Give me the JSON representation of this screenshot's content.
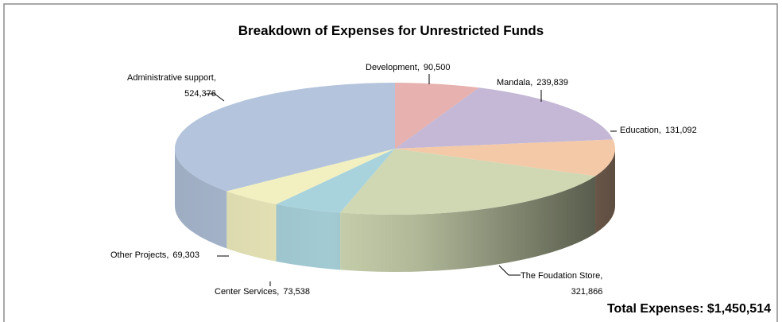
{
  "chart_data": {
    "type": "pie3d",
    "title": "Breakdown of Expenses for Unrestricted Funds",
    "annotation": "Total Expenses: $1,450,514",
    "categories": [
      "Development",
      "Mandala",
      "Education",
      "The Foudation Store",
      "Center Services",
      "Other Projects",
      "Administrative support"
    ],
    "values": [
      90500,
      239839,
      131092,
      321866,
      73538,
      69303,
      524376
    ],
    "value_labels": [
      "90,500",
      "239,839",
      "131,092",
      "321,866",
      "73,538",
      "69,303",
      "524,376"
    ],
    "colors": [
      "#e6b1ae",
      "#c4b8d6",
      "#f3c9a8",
      "#cfd8b3",
      "#a9d3dc",
      "#f2f0c0",
      "#b3c4dc"
    ]
  }
}
